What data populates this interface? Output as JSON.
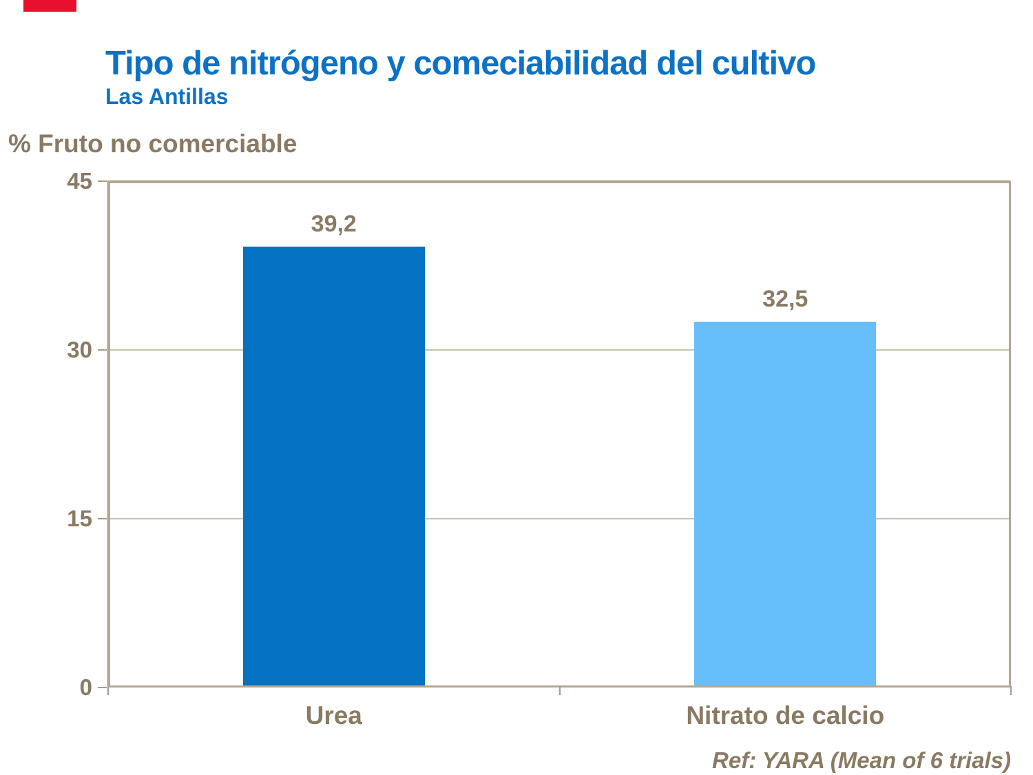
{
  "slide": {
    "title": "Tipo de nitrógeno y comeciabilidad del cultivo",
    "subtitle": "Las Antillas",
    "reference": "Ref: YARA (Mean of 6 trials)"
  },
  "colors": {
    "title_blue": "#0d72c6",
    "text_brown": "#8a7a63",
    "frame_tan": "#b2a695",
    "gridline": "#c9c0b1",
    "red_accent": "#e8112d",
    "bar_urea": "#0572c2",
    "bar_nitrato_de_calcio": "#66befb"
  },
  "chart_data": {
    "type": "bar",
    "title": "Tipo de nitrógeno y comeciabilidad del cultivo - Las Antillas",
    "ylabel": "% Fruto no comerciable",
    "xlabel": "",
    "categories": [
      "Urea",
      "Nitrato de calcio"
    ],
    "values": [
      39.2,
      32.5
    ],
    "value_labels": [
      "39,2",
      "32,5"
    ],
    "bar_colors": [
      "#0572c2",
      "#66befb"
    ],
    "ylim": [
      0,
      45
    ],
    "yticks": [
      0,
      15,
      30,
      45
    ],
    "grid": "horizontal",
    "legend": "none"
  }
}
